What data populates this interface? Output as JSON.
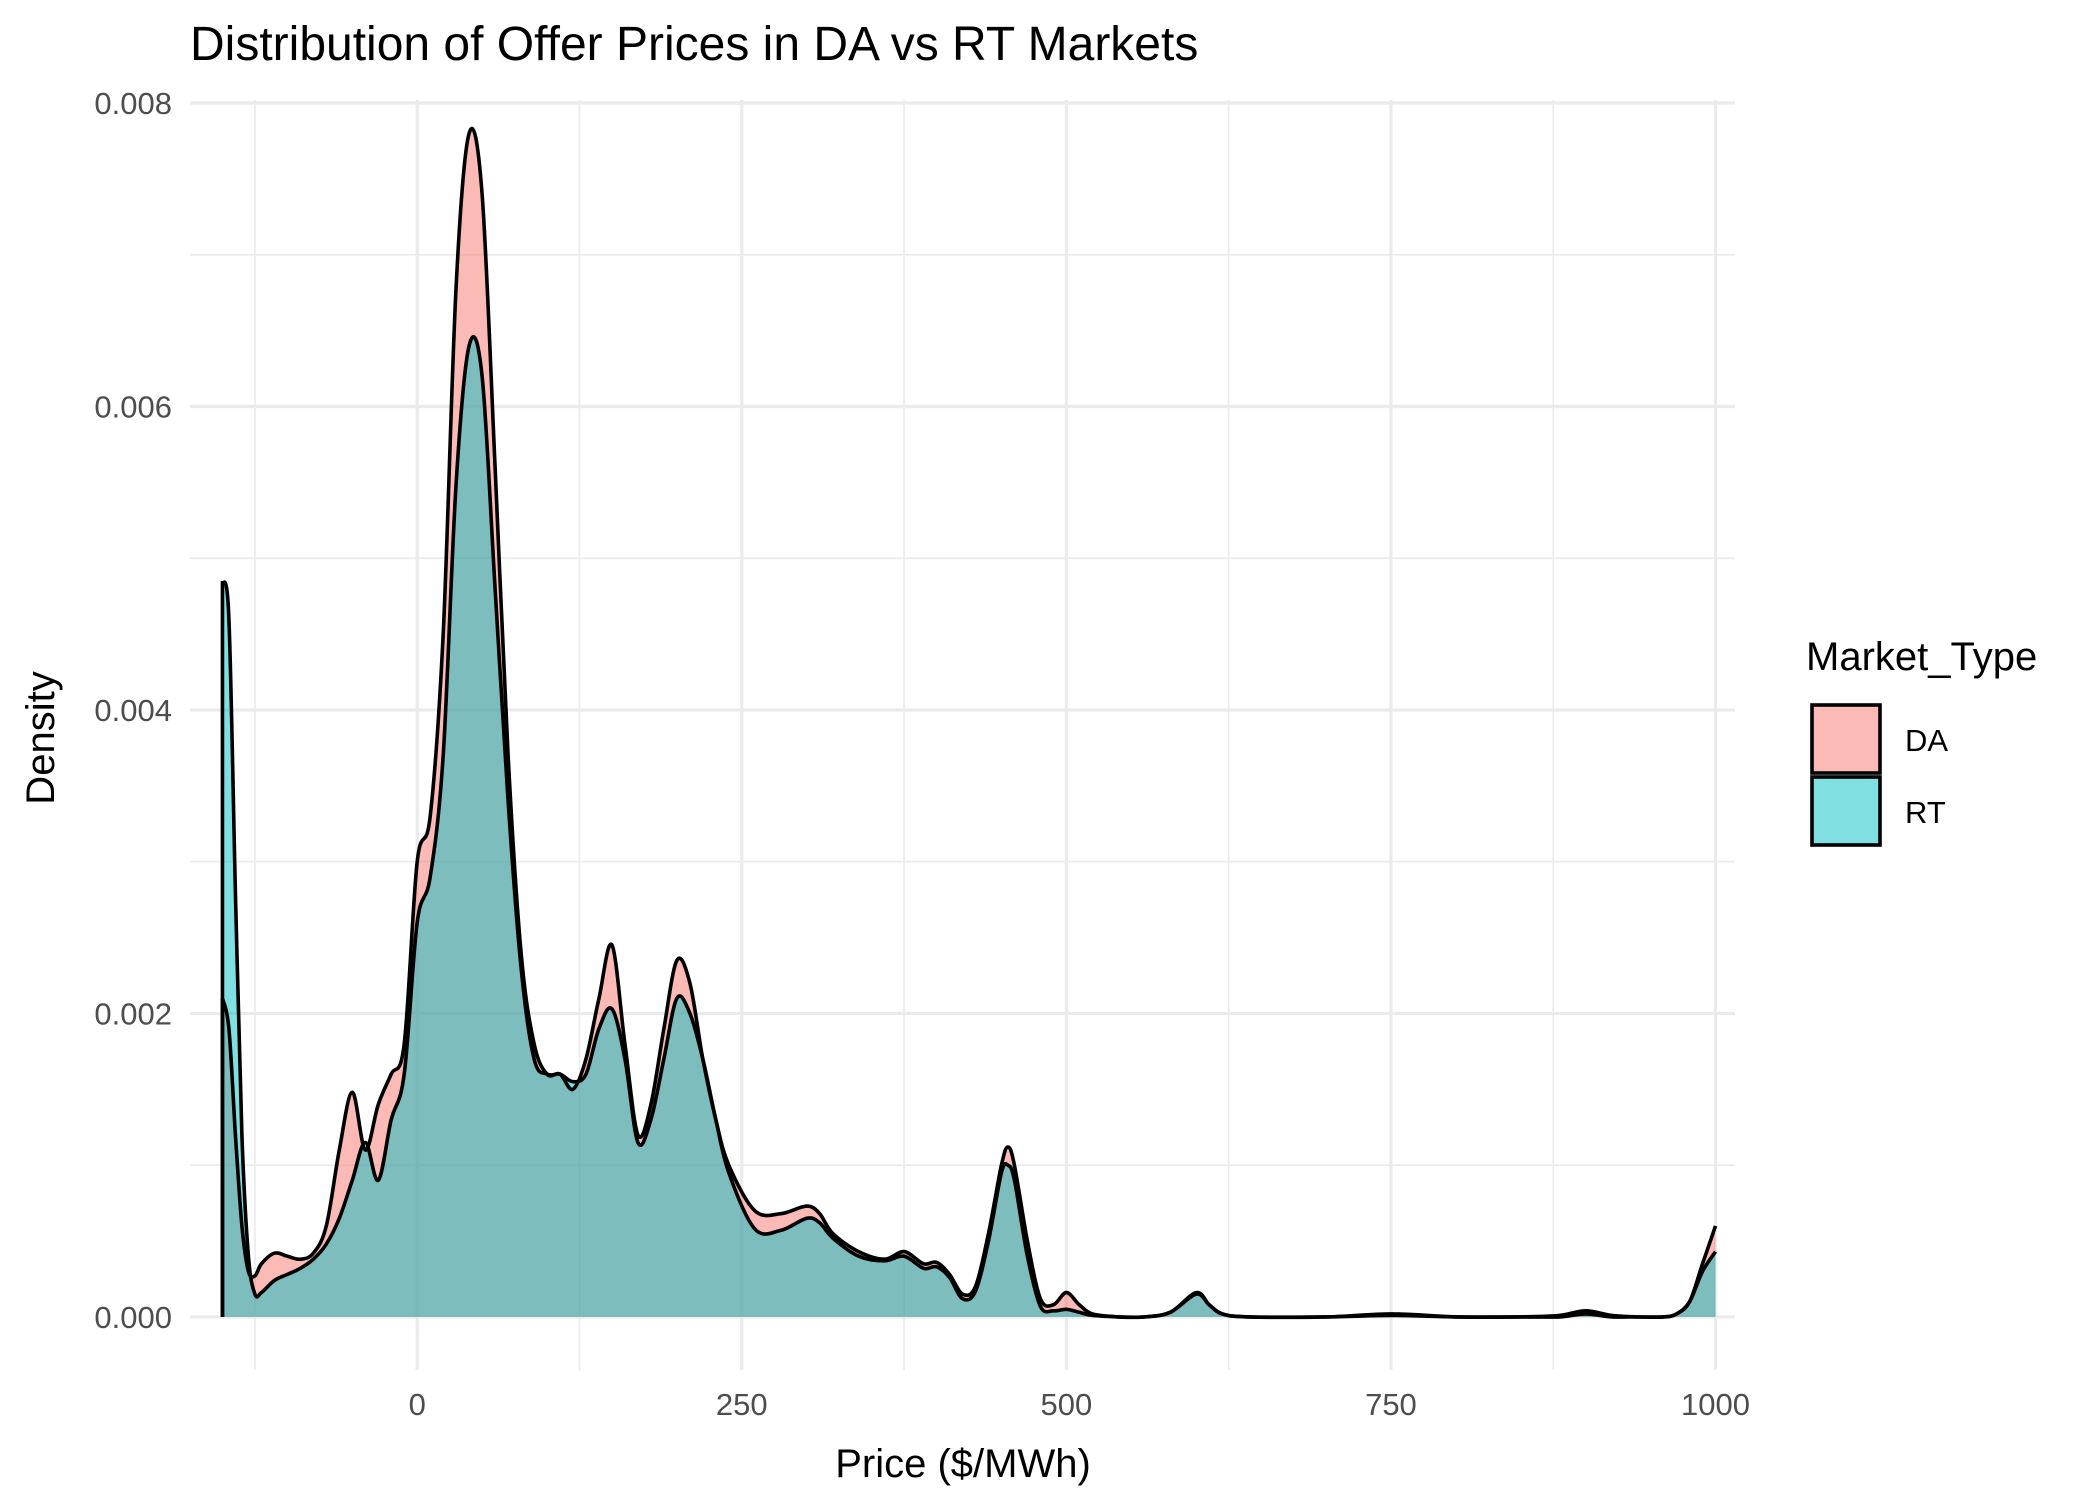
{
  "chart_data": {
    "type": "area",
    "title": "Distribution of Offer Prices in DA vs RT Markets",
    "xlabel": "Price ($/MWh)",
    "ylabel": "Density",
    "xlim": [
      -175,
      1015
    ],
    "ylim": [
      -0.00035,
      0.00802
    ],
    "x_ticks": [
      0,
      250,
      500,
      750,
      1000
    ],
    "x_tick_labels": [
      "0",
      "250",
      "500",
      "750",
      "1000"
    ],
    "y_ticks": [
      0,
      0.002,
      0.004,
      0.006,
      0.008
    ],
    "y_tick_labels": [
      "0.000",
      "0.002",
      "0.004",
      "0.006",
      "0.008"
    ],
    "grid": true,
    "legend": {
      "title": "Market_Type",
      "position": "right"
    },
    "series": [
      {
        "name": "DA",
        "color": "#F8766D",
        "x": [
          -150,
          -145,
          -140,
          -135,
          -130,
          -125,
          -120,
          -110,
          -100,
          -90,
          -80,
          -70,
          -60,
          -50,
          -40,
          -30,
          -20,
          -10,
          0,
          10,
          20,
          30,
          40,
          50,
          60,
          70,
          80,
          90,
          100,
          110,
          120,
          130,
          140,
          150,
          160,
          170,
          180,
          190,
          200,
          210,
          220,
          230,
          240,
          260,
          280,
          300,
          310,
          320,
          340,
          360,
          375,
          390,
          400,
          410,
          420,
          430,
          440,
          450,
          455,
          460,
          470,
          480,
          490,
          500,
          510,
          520,
          540,
          560,
          580,
          600,
          610,
          620,
          640,
          700,
          750,
          800,
          850,
          880,
          900,
          920,
          940,
          960,
          970,
          980,
          990,
          1000
        ],
        "values": [
          0.0021,
          0.0019,
          0.0012,
          0.0006,
          0.0003,
          0.00027,
          0.00035,
          0.00042,
          0.0004,
          0.00038,
          0.00042,
          0.0006,
          0.0011,
          0.00148,
          0.0011,
          0.0014,
          0.0016,
          0.0018,
          0.003,
          0.0033,
          0.0045,
          0.0068,
          0.0078,
          0.0074,
          0.0056,
          0.0037,
          0.0024,
          0.0018,
          0.0016,
          0.0016,
          0.0015,
          0.0017,
          0.0021,
          0.00245,
          0.0018,
          0.0012,
          0.0014,
          0.0019,
          0.00235,
          0.0022,
          0.0017,
          0.0013,
          0.001,
          0.0007,
          0.00068,
          0.00073,
          0.00068,
          0.00055,
          0.00043,
          0.00038,
          0.00043,
          0.00035,
          0.00036,
          0.00028,
          0.00015,
          0.0002,
          0.00055,
          0.001,
          0.00112,
          0.001,
          0.0005,
          0.00012,
          8e-05,
          0.00016,
          8e-05,
          2e-05,
          0.0,
          0.0,
          3e-05,
          0.00016,
          8e-05,
          2e-05,
          0.0,
          0.0,
          2e-05,
          0.0,
          0.0,
          1e-05,
          4e-05,
          1e-05,
          0.0,
          0.0,
          2e-05,
          0.0001,
          0.00035,
          0.0006
        ]
      },
      {
        "name": "RT",
        "color": "#00BFC4",
        "x": [
          -150,
          -145,
          -140,
          -135,
          -130,
          -125,
          -120,
          -110,
          -100,
          -90,
          -80,
          -70,
          -60,
          -50,
          -40,
          -30,
          -20,
          -10,
          0,
          10,
          20,
          30,
          40,
          50,
          60,
          70,
          80,
          90,
          100,
          110,
          120,
          130,
          140,
          150,
          160,
          170,
          180,
          190,
          200,
          210,
          220,
          230,
          240,
          260,
          280,
          300,
          310,
          320,
          340,
          360,
          375,
          390,
          400,
          410,
          420,
          430,
          440,
          450,
          455,
          460,
          470,
          480,
          490,
          500,
          510,
          520,
          540,
          560,
          580,
          600,
          610,
          620,
          640,
          700,
          750,
          800,
          850,
          880,
          900,
          920,
          940,
          960,
          970,
          980,
          990,
          1000
        ],
        "values": [
          0.00485,
          0.0046,
          0.0028,
          0.0012,
          0.0004,
          0.00015,
          0.00016,
          0.00024,
          0.00028,
          0.00032,
          0.00038,
          0.00048,
          0.00065,
          0.0009,
          0.00115,
          0.0009,
          0.0013,
          0.0016,
          0.0026,
          0.0029,
          0.0037,
          0.0055,
          0.0064,
          0.0062,
          0.0048,
          0.0034,
          0.0023,
          0.0017,
          0.0016,
          0.0016,
          0.00155,
          0.0016,
          0.0019,
          0.00203,
          0.0017,
          0.00115,
          0.0013,
          0.0017,
          0.0021,
          0.002,
          0.0017,
          0.0013,
          0.00095,
          0.00058,
          0.00057,
          0.00065,
          0.00062,
          0.00052,
          0.0004,
          0.00037,
          0.0004,
          0.00032,
          0.00033,
          0.00026,
          0.00012,
          0.00017,
          0.0005,
          0.00095,
          0.001,
          0.0009,
          0.0004,
          7e-05,
          4e-05,
          5e-05,
          3e-05,
          1e-05,
          0.0,
          0.0,
          3e-05,
          0.00015,
          8e-05,
          2e-05,
          0.0,
          0.0,
          1e-05,
          0.0,
          0.0,
          0.0,
          2e-05,
          0.0,
          0.0,
          0.0,
          2e-05,
          0.0001,
          0.0003,
          0.00043
        ]
      }
    ]
  }
}
